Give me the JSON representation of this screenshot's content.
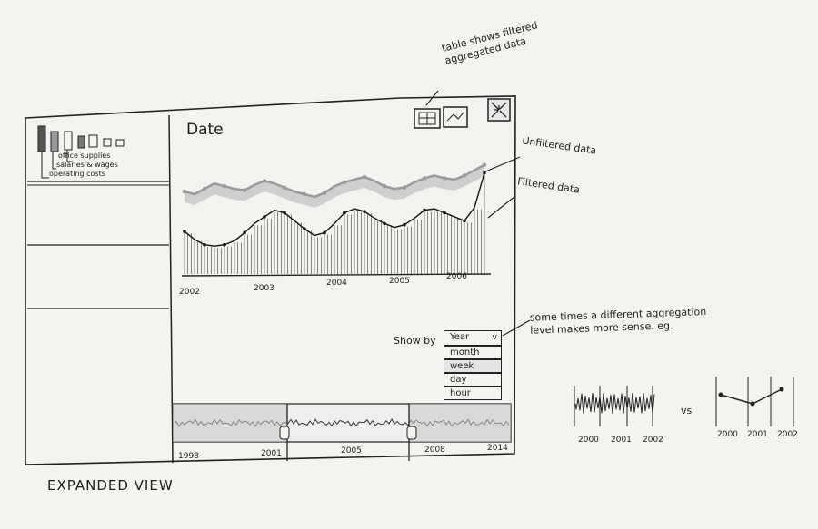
{
  "panel": {
    "title": "Date",
    "legend": [
      "office supplies",
      "salaries & wages",
      "operating costs"
    ]
  },
  "chart_data": {
    "type": "line",
    "title": "",
    "x_tick_labels": [
      "2002",
      "2003",
      "2004",
      "2005",
      "2006"
    ],
    "series": [
      {
        "name": "Unfiltered data",
        "values": [
          6.2,
          6.0,
          6.4,
          6.8,
          6.6,
          6.4,
          6.3,
          6.7,
          7.0,
          6.8,
          6.5,
          6.2,
          6.0,
          5.8,
          6.1,
          6.6,
          6.9,
          7.1,
          7.3,
          7.0,
          6.6,
          6.4,
          6.5,
          6.9,
          7.2,
          7.4,
          7.2,
          7.1,
          7.4,
          7.8,
          8.2
        ]
      },
      {
        "name": "Filtered data",
        "values": [
          3.2,
          2.6,
          2.2,
          2.1,
          2.2,
          2.5,
          3.1,
          3.8,
          4.3,
          4.8,
          4.6,
          4.0,
          3.4,
          2.9,
          3.1,
          3.8,
          4.6,
          4.9,
          4.7,
          4.2,
          3.8,
          3.5,
          3.7,
          4.2,
          4.8,
          4.9,
          4.6,
          4.3,
          4.0,
          5.0,
          7.6
        ]
      }
    ]
  },
  "toolbar": {
    "table_icon": "table-icon",
    "line_icon": "line-chart-icon",
    "collapse_icon": "collapse-icon"
  },
  "show_by": {
    "label": "Show by",
    "selected": "Year",
    "options": [
      "month",
      "week",
      "day",
      "hour"
    ]
  },
  "timeline": {
    "labels": [
      "1998",
      "2001",
      "2005",
      "2008",
      "2014"
    ]
  },
  "annotations": {
    "table": "table shows filtered aggregated data",
    "unfiltered": "Unfiltered data",
    "filtered": "Filtered data",
    "aggregation": "some times a different aggregation level makes more sense. eg.",
    "expanded": "EXPANDED VIEW"
  },
  "example": {
    "left_labels": [
      "2000",
      "2001",
      "2002"
    ],
    "vs": "vs",
    "right_labels": [
      "2000",
      "2001",
      "2002"
    ]
  }
}
